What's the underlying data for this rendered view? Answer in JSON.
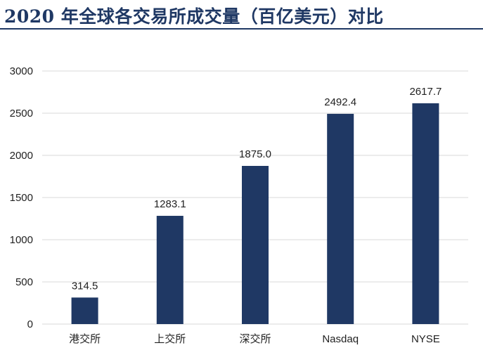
{
  "chart_data": {
    "type": "bar",
    "title": "2020 年全球各交易所成交量（百亿美元）对比",
    "categories": [
      "港交所",
      "上交所",
      "深交所",
      "Nasdaq",
      "NYSE"
    ],
    "values": [
      314.5,
      1283.1,
      1875.0,
      2492.4,
      2617.7
    ],
    "data_labels": [
      "314.5",
      "1283.1",
      "1875.0",
      "2492.4",
      "2617.7"
    ],
    "y_ticks": [
      0,
      500,
      1000,
      1500,
      2000,
      2500,
      3000
    ],
    "ylim": [
      0,
      3000
    ],
    "xlabel": "",
    "ylabel": "",
    "grid": true,
    "legend": "none",
    "bar_color": "#1f3864",
    "grid_color": "#d9d9d9",
    "title_color": "#1f3864"
  }
}
